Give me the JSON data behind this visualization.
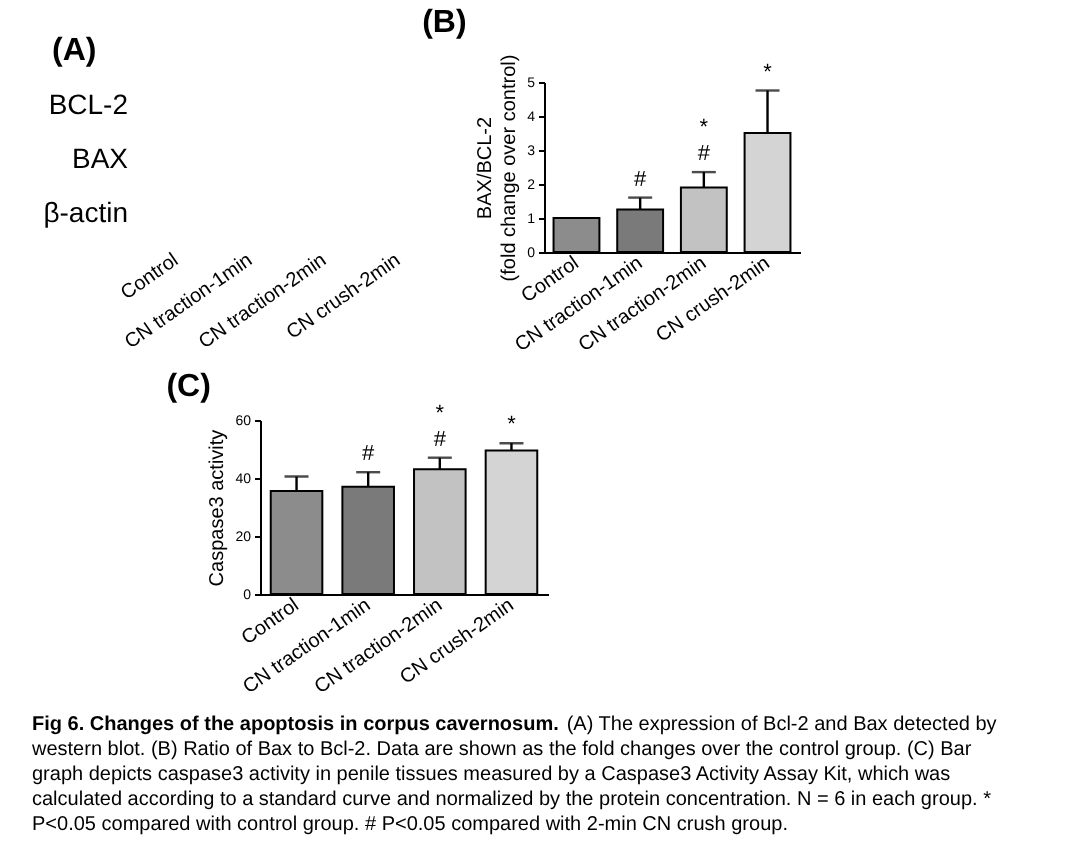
{
  "chart_data": [
    {
      "type": "other",
      "title": "(A)",
      "categories": [
        "Control",
        "CN traction-1min",
        "CN traction-2min",
        "CN crush-2min"
      ],
      "annotations": [
        "BCL-2",
        "BAX",
        "β-actin"
      ]
    },
    {
      "type": "bar",
      "title": "(B)",
      "ylabel": "BAX/BCL-2\n(fold change over control)",
      "categories": [
        "Control",
        "CN traction-1min",
        "CN traction-2min",
        "CN crush-2min"
      ],
      "values": [
        1.0,
        1.25,
        1.9,
        3.5
      ],
      "errors": [
        null,
        0.35,
        0.45,
        1.25
      ],
      "colors": [
        "#8c8c8c",
        "#7a7a7a",
        "#c2c2c2",
        "#d4d4d4"
      ],
      "ylim": [
        0,
        5
      ],
      "yticks": [
        0,
        1,
        2,
        3,
        4,
        5
      ],
      "annotations": [
        {
          "text": "#",
          "x": "CN traction-1min",
          "y": 1.6
        },
        {
          "text": "#",
          "x": "CN traction-2min",
          "y": 2.35
        },
        {
          "text": "*",
          "x": "CN traction-2min",
          "y": 2.35
        },
        {
          "text": "*",
          "x": "CN crush-2min",
          "y": 4.75
        }
      ]
    },
    {
      "type": "bar",
      "title": "(C)",
      "ylabel": "Caspase3 activity",
      "categories": [
        "Control",
        "CN traction-1min",
        "CN traction-2min",
        "CN crush-2min"
      ],
      "values": [
        35.5,
        37,
        43,
        49.5
      ],
      "errors": [
        5,
        5,
        4,
        2.5
      ],
      "colors": [
        "#8c8c8c",
        "#7a7a7a",
        "#c2c2c2",
        "#d4d4d4"
      ],
      "ylim": [
        0,
        60
      ],
      "yticks": [
        0,
        20,
        40,
        60
      ],
      "annotations": [
        {
          "text": "#",
          "x": "CN traction-1min",
          "y": 42
        },
        {
          "text": "#",
          "x": "CN traction-2min",
          "y": 47
        },
        {
          "text": "*",
          "x": "CN traction-2min",
          "y": 47
        },
        {
          "text": "*",
          "x": "CN crush-2min",
          "y": 52
        }
      ]
    },
    {
      "type": "other",
      "title": "Fig 6. Changes of the apoptosis in corpus cavernosum.",
      "annotations": [
        "(A) The expression of Bcl-2 and Bax detected by western blot. (B) Ratio of Bax to Bcl-2. Data are shown as the fold changes over the control group. (C) Bar graph depicts caspase3 activity in penile tissues measured by a Caspase3 Activity Assay Kit, which was calculated according to a standard curve and normalized by the protein concentration. N = 6 in each group. * P<0.05 compared with control group. # P<0.05 compared with 2-min CN crush group."
      ]
    }
  ]
}
